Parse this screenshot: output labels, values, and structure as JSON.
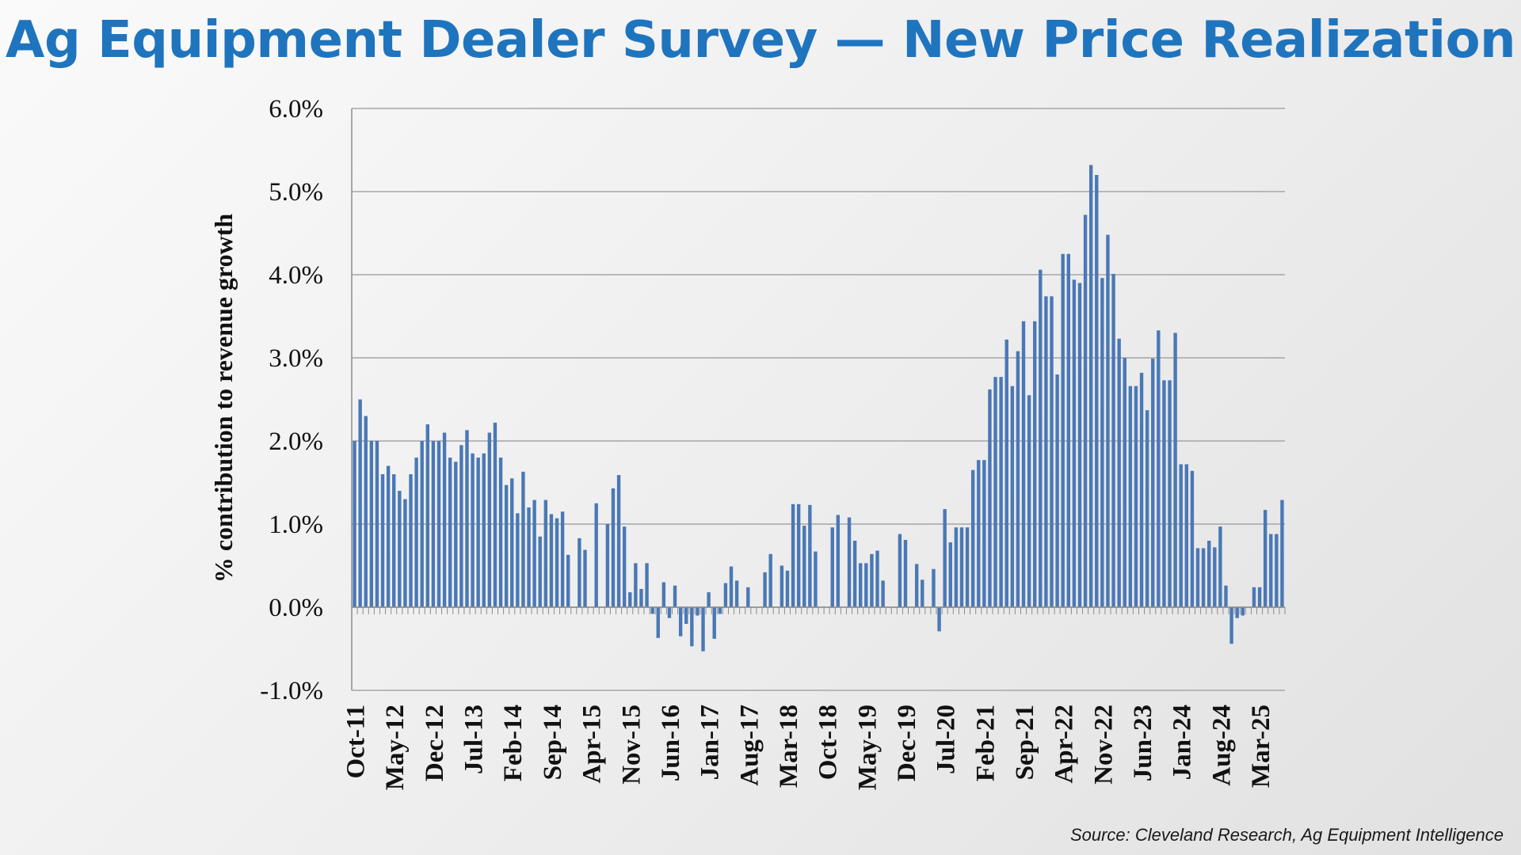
{
  "title": "Ag Equipment Dealer Survey — New Price Realization",
  "source": "Source: Cleveland Research, Ag Equipment Intelligence",
  "colors": {
    "title": "#1f74be",
    "bar": "#4a78b6",
    "grid": "#a6a6a6"
  },
  "chart_data": {
    "type": "bar",
    "title": "",
    "xlabel": "",
    "ylabel": "% contribution to revenue growth",
    "ylim": [
      -1.0,
      6.0
    ],
    "y_ticks": [
      "-1.0%",
      "0.0%",
      "1.0%",
      "2.0%",
      "3.0%",
      "4.0%",
      "5.0%",
      "6.0%"
    ],
    "y_tick_values": [
      -1.0,
      0.0,
      1.0,
      2.0,
      3.0,
      4.0,
      5.0,
      6.0
    ],
    "grid": true,
    "x_start": "Oct-11",
    "x_end": "Jun-25",
    "x_tick_labels": [
      "Oct-11",
      "May-12",
      "Dec-12",
      "Jul-13",
      "Feb-14",
      "Sep-14",
      "Apr-15",
      "Nov-15",
      "Jun-16",
      "Jan-17",
      "Aug-17",
      "Mar-18",
      "Oct-18",
      "May-19",
      "Dec-19",
      "Jul-20",
      "Feb-21",
      "Sep-21",
      "Apr-22",
      "Nov-22",
      "Jun-23",
      "Jan-24",
      "Aug-24",
      "Mar-25"
    ],
    "series": [
      {
        "name": "",
        "values": [
          2.0,
          2.5,
          2.3,
          2.0,
          2.0,
          1.6,
          1.7,
          1.6,
          1.4,
          1.3,
          1.6,
          1.8,
          2.0,
          2.2,
          2.0,
          2.0,
          2.1,
          1.8,
          1.75,
          1.95,
          2.13,
          1.85,
          1.8,
          1.85,
          2.1,
          2.22,
          1.8,
          1.47,
          1.55,
          1.13,
          1.63,
          1.2,
          1.29,
          0.85,
          1.29,
          1.12,
          1.07,
          1.15,
          0.63,
          0.0,
          0.83,
          0.69,
          0.0,
          1.25,
          0.0,
          1.0,
          1.43,
          1.59,
          0.97,
          0.18,
          0.53,
          0.22,
          0.53,
          -0.08,
          -0.37,
          0.3,
          -0.13,
          0.26,
          -0.35,
          -0.2,
          -0.47,
          -0.1,
          -0.53,
          0.18,
          -0.38,
          -0.08,
          0.29,
          0.49,
          0.32,
          0.0,
          0.24,
          0.0,
          0.0,
          0.42,
          0.64,
          0.0,
          0.5,
          0.44,
          1.24,
          1.24,
          0.98,
          1.23,
          0.67,
          0.0,
          0.0,
          0.96,
          1.11,
          0.0,
          1.08,
          0.8,
          0.53,
          0.53,
          0.64,
          0.68,
          0.32,
          0.0,
          0.0,
          0.88,
          0.81,
          0.0,
          0.52,
          0.33,
          0.0,
          0.46,
          -0.29,
          1.18,
          0.78,
          0.96,
          0.96,
          0.96,
          1.65,
          1.77,
          1.77,
          2.62,
          2.77,
          2.77,
          3.22,
          2.66,
          3.08,
          3.44,
          2.55,
          3.44,
          4.06,
          3.74,
          3.74,
          2.8,
          4.25,
          4.25,
          3.94,
          3.9,
          4.72,
          5.32,
          5.2,
          3.96,
          4.48,
          4.01,
          3.23,
          3.0,
          2.66,
          2.66,
          2.82,
          2.37,
          2.99,
          3.33,
          2.73,
          2.73,
          3.3,
          1.72,
          1.72,
          1.64,
          0.71,
          0.71,
          0.8,
          0.72,
          0.97,
          0.26,
          -0.44,
          -0.13,
          -0.1,
          0.0,
          0.24,
          0.24,
          1.17,
          0.88,
          0.88,
          1.29
        ]
      }
    ]
  }
}
